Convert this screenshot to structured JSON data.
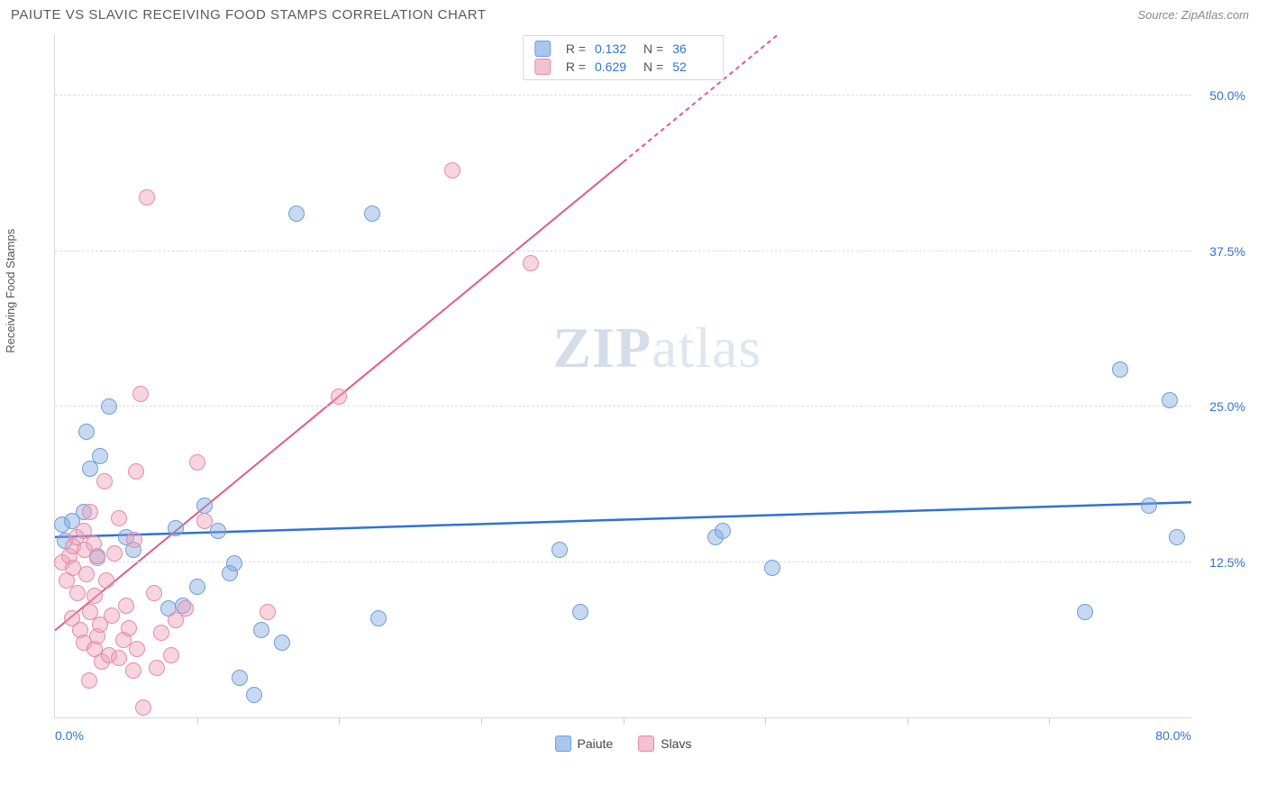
{
  "title": "PAIUTE VS SLAVIC RECEIVING FOOD STAMPS CORRELATION CHART",
  "source": "Source: ZipAtlas.com",
  "yaxis_label": "Receiving Food Stamps",
  "watermark": {
    "bold": "ZIP",
    "light": "atlas"
  },
  "xlim": [
    0,
    80
  ],
  "ylim": [
    0,
    55
  ],
  "x_labels": [
    {
      "v": 0,
      "t": "0.0%",
      "cls": "first"
    },
    {
      "v": 80,
      "t": "80.0%",
      "cls": "last"
    }
  ],
  "x_ticks": [
    10,
    20,
    30,
    40,
    50,
    60,
    70
  ],
  "y_gridlines": [
    {
      "v": 12.5,
      "t": "12.5%"
    },
    {
      "v": 25.0,
      "t": "25.0%"
    },
    {
      "v": 37.5,
      "t": "37.5%"
    },
    {
      "v": 50.0,
      "t": "50.0%"
    }
  ],
  "series": [
    {
      "name": "Paiute",
      "fill": "rgba(130,170,225,0.45)",
      "stroke": "#6d9edb",
      "marker_r": 9,
      "swatch_fill": "#a9c6ec",
      "swatch_border": "#6d9edb",
      "trend": {
        "color": "#2f72d6",
        "width": 2.5,
        "x1": 0,
        "y1": 14.5,
        "x2": 80,
        "y2": 17.3,
        "dash_after_x": null
      },
      "stats": {
        "R": "0.132",
        "N": "36"
      },
      "points": [
        [
          0.5,
          15.5
        ],
        [
          0.7,
          14.2
        ],
        [
          1.2,
          15.8
        ],
        [
          2.0,
          16.5
        ],
        [
          2.2,
          23.0
        ],
        [
          2.5,
          20.0
        ],
        [
          3.0,
          13.0
        ],
        [
          3.2,
          21.0
        ],
        [
          3.8,
          25.0
        ],
        [
          5.0,
          14.5
        ],
        [
          5.5,
          13.5
        ],
        [
          8.0,
          8.8
        ],
        [
          8.5,
          15.2
        ],
        [
          9.0,
          9.0
        ],
        [
          10.0,
          10.5
        ],
        [
          10.5,
          17.0
        ],
        [
          11.5,
          15.0
        ],
        [
          12.3,
          11.6
        ],
        [
          12.6,
          12.4
        ],
        [
          13.0,
          3.2
        ],
        [
          14.0,
          1.8
        ],
        [
          14.5,
          7.0
        ],
        [
          16.0,
          6.0
        ],
        [
          17.0,
          40.5
        ],
        [
          22.3,
          40.5
        ],
        [
          22.8,
          8.0
        ],
        [
          35.5,
          13.5
        ],
        [
          37.0,
          8.5
        ],
        [
          46.5,
          14.5
        ],
        [
          47.0,
          15.0
        ],
        [
          50.5,
          12.0
        ],
        [
          72.5,
          8.5
        ],
        [
          75.0,
          28.0
        ],
        [
          77.0,
          17.0
        ],
        [
          78.5,
          25.5
        ],
        [
          79.0,
          14.5
        ]
      ]
    },
    {
      "name": "Slavs",
      "fill": "rgba(240,160,185,0.45)",
      "stroke": "#e48ba7",
      "marker_r": 9,
      "swatch_fill": "#f3c1d0",
      "swatch_border": "#e48ba7",
      "trend": {
        "color": "#e15b85",
        "width": 2,
        "x1": 0,
        "y1": 7.0,
        "x2": 51,
        "y2": 55.0,
        "dash_after_x": 40
      },
      "stats": {
        "R": "0.629",
        "N": "52"
      },
      "points": [
        [
          0.5,
          12.5
        ],
        [
          0.8,
          11.0
        ],
        [
          1.0,
          13.0
        ],
        [
          1.2,
          8.0
        ],
        [
          1.3,
          12.0
        ],
        [
          1.3,
          13.8
        ],
        [
          1.5,
          14.5
        ],
        [
          1.6,
          10.0
        ],
        [
          1.8,
          7.0
        ],
        [
          2.0,
          15.0
        ],
        [
          2.0,
          6.0
        ],
        [
          2.1,
          13.5
        ],
        [
          2.2,
          11.5
        ],
        [
          2.4,
          3.0
        ],
        [
          2.5,
          8.5
        ],
        [
          2.5,
          16.5
        ],
        [
          2.7,
          14.0
        ],
        [
          2.8,
          5.5
        ],
        [
          2.8,
          9.8
        ],
        [
          3.0,
          12.8
        ],
        [
          3.0,
          6.5
        ],
        [
          3.2,
          7.5
        ],
        [
          3.3,
          4.5
        ],
        [
          3.5,
          19.0
        ],
        [
          3.6,
          11.0
        ],
        [
          3.8,
          5.0
        ],
        [
          4.0,
          8.2
        ],
        [
          4.2,
          13.2
        ],
        [
          4.5,
          16.0
        ],
        [
          4.5,
          4.8
        ],
        [
          4.8,
          6.2
        ],
        [
          5.0,
          9.0
        ],
        [
          5.2,
          7.2
        ],
        [
          5.5,
          3.8
        ],
        [
          5.6,
          14.3
        ],
        [
          5.7,
          19.8
        ],
        [
          5.8,
          5.5
        ],
        [
          6.0,
          26.0
        ],
        [
          6.2,
          0.8
        ],
        [
          6.5,
          41.8
        ],
        [
          7.0,
          10.0
        ],
        [
          7.2,
          4.0
        ],
        [
          7.5,
          6.8
        ],
        [
          8.2,
          5.0
        ],
        [
          8.5,
          7.8
        ],
        [
          9.2,
          8.8
        ],
        [
          10.0,
          20.5
        ],
        [
          10.5,
          15.8
        ],
        [
          15.0,
          8.5
        ],
        [
          20.0,
          25.8
        ],
        [
          28.0,
          44.0
        ],
        [
          33.5,
          36.5
        ]
      ]
    }
  ],
  "legend_stats_labels": {
    "R": "R  =",
    "N": "N  ="
  }
}
